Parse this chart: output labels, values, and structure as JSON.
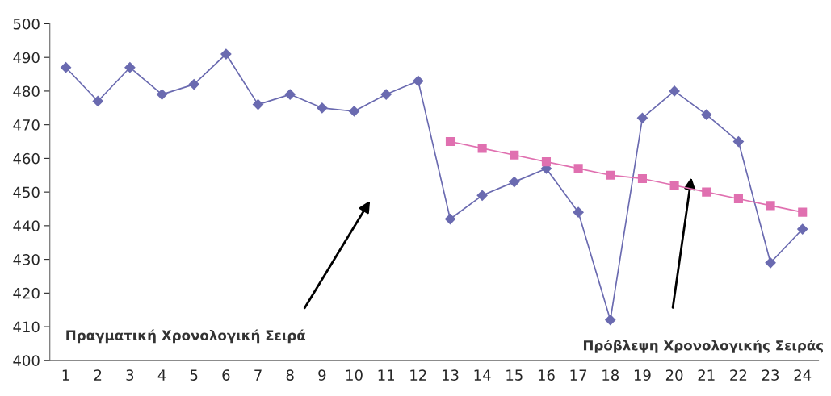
{
  "chart_data": {
    "type": "line",
    "categories": [
      "1",
      "2",
      "3",
      "4",
      "5",
      "6",
      "7",
      "8",
      "9",
      "10",
      "11",
      "12",
      "13",
      "14",
      "15",
      "16",
      "17",
      "18",
      "19",
      "20",
      "21",
      "22",
      "23",
      "24"
    ],
    "series": [
      {
        "color": "#6a6ab0",
        "marker": "diamond",
        "values": [
          487,
          477,
          487,
          479,
          482,
          491,
          476,
          479,
          475,
          474,
          479,
          483,
          442,
          449,
          453,
          457,
          444,
          412,
          472,
          480,
          473,
          465,
          429,
          439
        ]
      },
      {
        "color": "#e070b0",
        "marker": "square",
        "values": [
          null,
          null,
          null,
          null,
          null,
          null,
          null,
          null,
          null,
          null,
          null,
          null,
          465,
          463,
          461,
          459,
          457,
          455,
          454,
          452,
          450,
          448,
          446,
          444
        ]
      }
    ],
    "ylim": [
      400,
      500
    ],
    "yticks": [
      400,
      410,
      420,
      430,
      440,
      450,
      460,
      470,
      480,
      490,
      500
    ],
    "grid": false,
    "annotations": [
      "Πραγματική Χρονολογική Σειρά",
      "Πρόβλεψη Χρονολογικής Σειράς"
    ]
  }
}
